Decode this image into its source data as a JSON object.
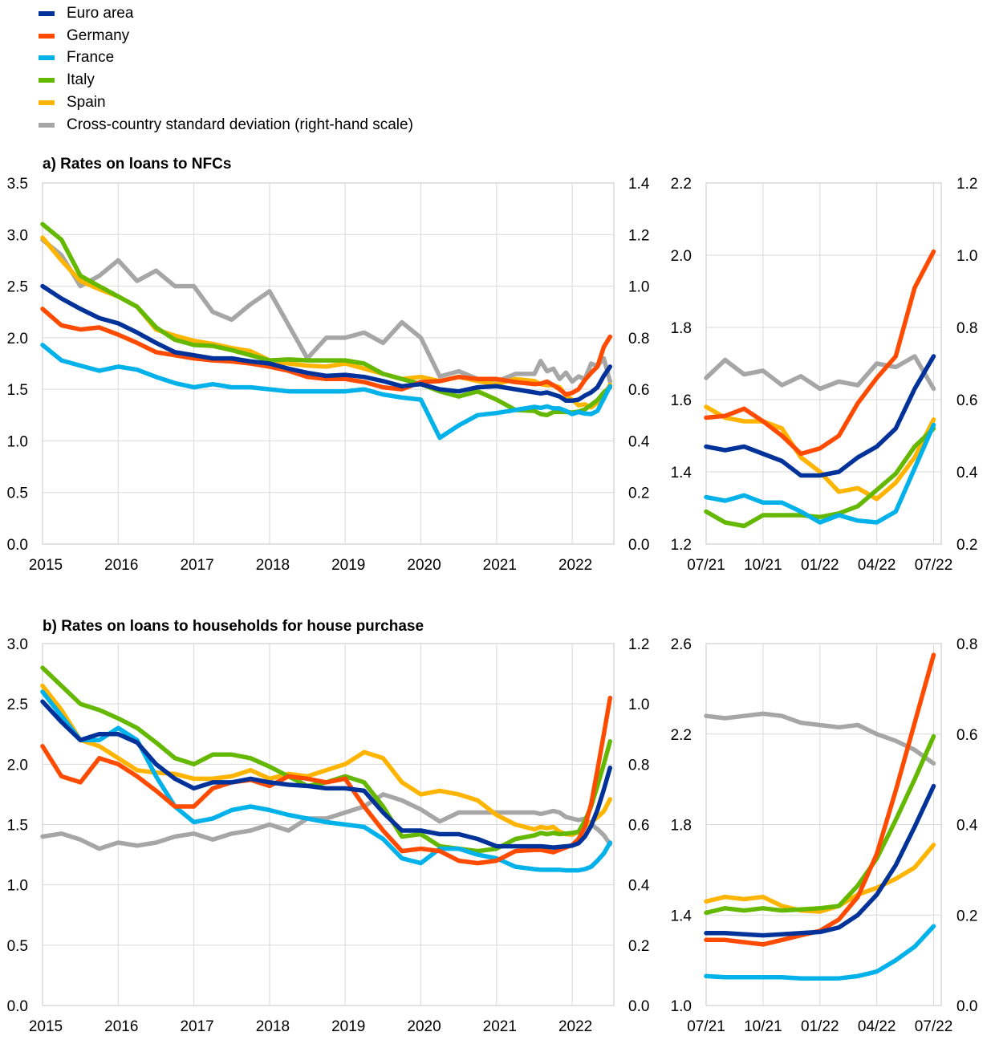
{
  "legend": [
    {
      "name": "Euro area",
      "color": "#003299"
    },
    {
      "name": "Germany",
      "color": "#ff4b00"
    },
    {
      "name": "France",
      "color": "#00b1ea"
    },
    {
      "name": "Italy",
      "color": "#65b800"
    },
    {
      "name": "Spain",
      "color": "#ffb400"
    },
    {
      "name": "Cross-country standard deviation (right-hand scale)",
      "color": "#a6a6a6"
    }
  ],
  "chart_data": [
    {
      "type": "line",
      "title": "a) Rates on loans to NFCs",
      "x": [
        2015,
        2015.25,
        2015.5,
        2015.75,
        2016,
        2016.25,
        2016.5,
        2016.75,
        2017,
        2017.25,
        2017.5,
        2017.75,
        2018,
        2018.25,
        2018.5,
        2018.75,
        2019,
        2019.25,
        2019.5,
        2019.75,
        2020,
        2020.25,
        2020.5,
        2020.75,
        2021,
        2021.25,
        2021.5,
        2021.583,
        2021.667,
        2021.75,
        2021.833,
        2021.917,
        2022,
        2022.083,
        2022.167,
        2022.25,
        2022.333,
        2022.417,
        2022.5
      ],
      "xlim": [
        2015,
        2022.55
      ],
      "xticks": [
        2015,
        2016,
        2017,
        2018,
        2019,
        2020,
        2021,
        2022
      ],
      "xtick_labels": [
        "2015",
        "2016",
        "2017",
        "2018",
        "2019",
        "2020",
        "2021",
        "2022"
      ],
      "ylim": [
        0,
        3.5
      ],
      "yticks": [
        "0.0",
        "0.5",
        "1.0",
        "1.5",
        "2.0",
        "2.5",
        "3.0",
        "3.5"
      ],
      "ylim_right": [
        0,
        1.4
      ],
      "yticks_right": [
        "0.0",
        "0.2",
        "0.4",
        "0.6",
        "0.8",
        "1.0",
        "1.2",
        "1.4"
      ],
      "series": [
        {
          "name": "Euro area",
          "color": "#003299",
          "axis": "left",
          "values": [
            2.5,
            2.38,
            2.28,
            2.19,
            2.14,
            2.05,
            1.95,
            1.86,
            1.83,
            1.8,
            1.8,
            1.77,
            1.75,
            1.7,
            1.66,
            1.63,
            1.64,
            1.62,
            1.58,
            1.53,
            1.55,
            1.5,
            1.48,
            1.52,
            1.53,
            1.5,
            1.47,
            1.46,
            1.47,
            1.45,
            1.43,
            1.39,
            1.39,
            1.4,
            1.44,
            1.47,
            1.52,
            1.63,
            1.72
          ]
        },
        {
          "name": "Germany",
          "color": "#ff4b00",
          "axis": "left",
          "values": [
            2.28,
            2.12,
            2.08,
            2.1,
            2.03,
            1.95,
            1.86,
            1.83,
            1.8,
            1.78,
            1.77,
            1.75,
            1.72,
            1.68,
            1.62,
            1.6,
            1.6,
            1.57,
            1.52,
            1.5,
            1.57,
            1.58,
            1.62,
            1.6,
            1.6,
            1.57,
            1.55,
            1.555,
            1.575,
            1.54,
            1.5,
            1.45,
            1.465,
            1.5,
            1.59,
            1.66,
            1.72,
            1.91,
            2.01
          ]
        },
        {
          "name": "France",
          "color": "#00b1ea",
          "axis": "left",
          "values": [
            1.93,
            1.78,
            1.73,
            1.68,
            1.72,
            1.69,
            1.62,
            1.56,
            1.52,
            1.55,
            1.52,
            1.52,
            1.5,
            1.48,
            1.48,
            1.48,
            1.48,
            1.5,
            1.45,
            1.42,
            1.4,
            1.03,
            1.15,
            1.25,
            1.27,
            1.3,
            1.33,
            1.32,
            1.335,
            1.315,
            1.315,
            1.29,
            1.26,
            1.28,
            1.265,
            1.26,
            1.29,
            1.41,
            1.53
          ]
        },
        {
          "name": "Italy",
          "color": "#65b800",
          "axis": "left",
          "values": [
            3.1,
            2.95,
            2.6,
            2.5,
            2.4,
            2.3,
            2.1,
            1.98,
            1.93,
            1.92,
            1.88,
            1.83,
            1.78,
            1.79,
            1.78,
            1.78,
            1.78,
            1.75,
            1.65,
            1.6,
            1.55,
            1.48,
            1.43,
            1.48,
            1.4,
            1.3,
            1.29,
            1.26,
            1.25,
            1.28,
            1.28,
            1.28,
            1.275,
            1.285,
            1.305,
            1.35,
            1.395,
            1.47,
            1.52
          ]
        },
        {
          "name": "Spain",
          "color": "#ffb400",
          "axis": "left",
          "values": [
            2.97,
            2.75,
            2.55,
            2.47,
            2.4,
            2.3,
            2.08,
            2.02,
            1.97,
            1.94,
            1.9,
            1.87,
            1.78,
            1.75,
            1.73,
            1.72,
            1.75,
            1.7,
            1.65,
            1.6,
            1.62,
            1.58,
            1.62,
            1.58,
            1.55,
            1.6,
            1.58,
            1.55,
            1.54,
            1.54,
            1.52,
            1.44,
            1.4,
            1.345,
            1.355,
            1.325,
            1.37,
            1.44,
            1.545
          ]
        },
        {
          "name": "Cross-country standard deviation (right-hand scale)",
          "color": "#a6a6a6",
          "axis": "right",
          "values": [
            1.18,
            1.12,
            1.0,
            1.04,
            1.1,
            1.02,
            1.06,
            1.0,
            1.0,
            0.9,
            0.87,
            0.93,
            0.98,
            0.85,
            0.72,
            0.8,
            0.8,
            0.82,
            0.78,
            0.86,
            0.8,
            0.65,
            0.67,
            0.64,
            0.63,
            0.66,
            0.66,
            0.71,
            0.67,
            0.68,
            0.64,
            0.665,
            0.63,
            0.65,
            0.64,
            0.7,
            0.69,
            0.72,
            0.63
          ]
        }
      ]
    },
    {
      "type": "line",
      "x": [
        0,
        1,
        2,
        3,
        4,
        5,
        6,
        7,
        8,
        9,
        10,
        11,
        12
      ],
      "xlim": [
        0,
        12.4
      ],
      "xticks": [
        0,
        3,
        6,
        9,
        12
      ],
      "xtick_labels": [
        "07/21",
        "10/21",
        "01/22",
        "04/22",
        "07/22"
      ],
      "ylim": [
        1.2,
        2.2
      ],
      "yticks": [
        "1.2",
        "1.4",
        "1.6",
        "1.8",
        "2.0",
        "2.2"
      ],
      "ylim_right": [
        0.2,
        1.2
      ],
      "yticks_right": [
        "0.2",
        "0.4",
        "0.6",
        "0.8",
        "1.0",
        "1.2"
      ],
      "series": [
        {
          "name": "Euro area",
          "color": "#003299",
          "axis": "left",
          "values": [
            1.47,
            1.46,
            1.47,
            1.45,
            1.43,
            1.39,
            1.39,
            1.4,
            1.44,
            1.47,
            1.52,
            1.63,
            1.72
          ]
        },
        {
          "name": "Germany",
          "color": "#ff4b00",
          "axis": "left",
          "values": [
            1.55,
            1.555,
            1.575,
            1.54,
            1.5,
            1.45,
            1.465,
            1.5,
            1.59,
            1.66,
            1.72,
            1.91,
            2.01
          ]
        },
        {
          "name": "France",
          "color": "#00b1ea",
          "axis": "left",
          "values": [
            1.33,
            1.32,
            1.335,
            1.315,
            1.315,
            1.29,
            1.26,
            1.28,
            1.265,
            1.26,
            1.29,
            1.41,
            1.53
          ]
        },
        {
          "name": "Italy",
          "color": "#65b800",
          "axis": "left",
          "values": [
            1.29,
            1.26,
            1.25,
            1.28,
            1.28,
            1.28,
            1.275,
            1.285,
            1.305,
            1.35,
            1.395,
            1.47,
            1.52
          ]
        },
        {
          "name": "Spain",
          "color": "#ffb400",
          "axis": "left",
          "values": [
            1.58,
            1.55,
            1.54,
            1.54,
            1.52,
            1.44,
            1.4,
            1.345,
            1.355,
            1.325,
            1.37,
            1.44,
            1.545
          ]
        },
        {
          "name": "Cross-country standard deviation (right-hand scale)",
          "color": "#a6a6a6",
          "axis": "right",
          "values": [
            0.66,
            0.71,
            0.67,
            0.68,
            0.64,
            0.665,
            0.63,
            0.65,
            0.64,
            0.7,
            0.69,
            0.72,
            0.63
          ]
        }
      ]
    },
    {
      "type": "line",
      "title": "b) Rates on loans to households for house purchase",
      "x": [
        2015,
        2015.25,
        2015.5,
        2015.75,
        2016,
        2016.25,
        2016.5,
        2016.75,
        2017,
        2017.25,
        2017.5,
        2017.75,
        2018,
        2018.25,
        2018.5,
        2018.75,
        2019,
        2019.25,
        2019.5,
        2019.75,
        2020,
        2020.25,
        2020.5,
        2020.75,
        2021,
        2021.25,
        2021.5,
        2021.583,
        2021.667,
        2021.75,
        2021.833,
        2021.917,
        2022,
        2022.083,
        2022.167,
        2022.25,
        2022.333,
        2022.417,
        2022.5
      ],
      "xlim": [
        2015,
        2022.55
      ],
      "xticks": [
        2015,
        2016,
        2017,
        2018,
        2019,
        2020,
        2021,
        2022
      ],
      "xtick_labels": [
        "2015",
        "2016",
        "2017",
        "2018",
        "2019",
        "2020",
        "2021",
        "2022"
      ],
      "ylim": [
        0,
        3.0
      ],
      "yticks": [
        "0.0",
        "0.5",
        "1.0",
        "1.5",
        "2.0",
        "2.5",
        "3.0"
      ],
      "ylim_right": [
        0,
        1.2
      ],
      "yticks_right": [
        "0.0",
        "0.2",
        "0.4",
        "0.6",
        "0.8",
        "1.0",
        "1.2"
      ],
      "series": [
        {
          "name": "Euro area",
          "color": "#003299",
          "axis": "left",
          "values": [
            2.52,
            2.35,
            2.2,
            2.25,
            2.25,
            2.18,
            2.0,
            1.88,
            1.8,
            1.85,
            1.85,
            1.88,
            1.85,
            1.83,
            1.82,
            1.8,
            1.8,
            1.78,
            1.6,
            1.45,
            1.45,
            1.42,
            1.42,
            1.38,
            1.32,
            1.32,
            1.32,
            1.32,
            1.315,
            1.31,
            1.315,
            1.32,
            1.325,
            1.345,
            1.4,
            1.49,
            1.62,
            1.79,
            1.97
          ]
        },
        {
          "name": "Germany",
          "color": "#ff4b00",
          "axis": "left",
          "values": [
            2.15,
            1.9,
            1.85,
            2.05,
            2.0,
            1.9,
            1.78,
            1.65,
            1.65,
            1.8,
            1.85,
            1.87,
            1.82,
            1.9,
            1.88,
            1.85,
            1.88,
            1.65,
            1.45,
            1.28,
            1.3,
            1.28,
            1.2,
            1.18,
            1.2,
            1.28,
            1.29,
            1.29,
            1.28,
            1.27,
            1.29,
            1.31,
            1.33,
            1.38,
            1.48,
            1.67,
            1.95,
            2.25,
            2.55
          ]
        },
        {
          "name": "France",
          "color": "#00b1ea",
          "axis": "left",
          "values": [
            2.6,
            2.4,
            2.2,
            2.2,
            2.3,
            2.2,
            1.9,
            1.65,
            1.52,
            1.55,
            1.62,
            1.65,
            1.62,
            1.58,
            1.55,
            1.52,
            1.5,
            1.48,
            1.38,
            1.22,
            1.18,
            1.3,
            1.3,
            1.25,
            1.22,
            1.15,
            1.13,
            1.125,
            1.125,
            1.125,
            1.125,
            1.12,
            1.12,
            1.12,
            1.13,
            1.15,
            1.2,
            1.26,
            1.35
          ]
        },
        {
          "name": "Italy",
          "color": "#65b800",
          "axis": "left",
          "values": [
            2.8,
            2.65,
            2.5,
            2.45,
            2.38,
            2.3,
            2.18,
            2.05,
            2.0,
            2.08,
            2.08,
            2.05,
            1.98,
            1.9,
            1.82,
            1.85,
            1.9,
            1.85,
            1.65,
            1.4,
            1.42,
            1.32,
            1.3,
            1.28,
            1.3,
            1.38,
            1.41,
            1.43,
            1.42,
            1.43,
            1.42,
            1.425,
            1.43,
            1.44,
            1.53,
            1.65,
            1.82,
            2.0,
            2.19
          ]
        },
        {
          "name": "Spain",
          "color": "#ffb400",
          "axis": "left",
          "values": [
            2.65,
            2.45,
            2.2,
            2.15,
            2.05,
            1.95,
            1.93,
            1.92,
            1.88,
            1.88,
            1.9,
            1.95,
            1.88,
            1.92,
            1.9,
            1.95,
            2.0,
            2.1,
            2.05,
            1.85,
            1.75,
            1.78,
            1.75,
            1.7,
            1.58,
            1.5,
            1.46,
            1.48,
            1.47,
            1.48,
            1.44,
            1.42,
            1.415,
            1.44,
            1.49,
            1.52,
            1.56,
            1.61,
            1.71
          ]
        },
        {
          "name": "Cross-country standard deviation (right-hand scale)",
          "color": "#a6a6a6",
          "axis": "right",
          "values": [
            0.56,
            0.57,
            0.55,
            0.52,
            0.54,
            0.53,
            0.54,
            0.56,
            0.57,
            0.55,
            0.57,
            0.58,
            0.6,
            0.58,
            0.62,
            0.62,
            0.64,
            0.66,
            0.7,
            0.68,
            0.65,
            0.61,
            0.64,
            0.64,
            0.64,
            0.64,
            0.64,
            0.635,
            0.64,
            0.645,
            0.64,
            0.625,
            0.62,
            0.615,
            0.62,
            0.6,
            0.585,
            0.565,
            0.535
          ]
        }
      ]
    },
    {
      "type": "line",
      "x": [
        0,
        1,
        2,
        3,
        4,
        5,
        6,
        7,
        8,
        9,
        10,
        11,
        12
      ],
      "xlim": [
        0,
        12.4
      ],
      "xticks": [
        0,
        3,
        6,
        9,
        12
      ],
      "xtick_labels": [
        "07/21",
        "10/21",
        "01/22",
        "04/22",
        "07/22"
      ],
      "ylim": [
        1.0,
        2.6
      ],
      "yticks": [
        "1.0",
        "1.4",
        "1.8",
        "2.2",
        "2.6"
      ],
      "ylim_right": [
        0,
        0.8
      ],
      "yticks_right": [
        "0.0",
        "0.2",
        "0.4",
        "0.6",
        "0.8"
      ],
      "series": [
        {
          "name": "Euro area",
          "color": "#003299",
          "axis": "left",
          "values": [
            1.32,
            1.32,
            1.315,
            1.31,
            1.315,
            1.32,
            1.325,
            1.345,
            1.4,
            1.49,
            1.62,
            1.79,
            1.97
          ]
        },
        {
          "name": "Germany",
          "color": "#ff4b00",
          "axis": "left",
          "values": [
            1.29,
            1.29,
            1.28,
            1.27,
            1.29,
            1.31,
            1.33,
            1.38,
            1.48,
            1.67,
            1.95,
            2.25,
            2.55
          ]
        },
        {
          "name": "France",
          "color": "#00b1ea",
          "axis": "left",
          "values": [
            1.13,
            1.125,
            1.125,
            1.125,
            1.125,
            1.12,
            1.12,
            1.12,
            1.13,
            1.15,
            1.2,
            1.26,
            1.35
          ]
        },
        {
          "name": "Italy",
          "color": "#65b800",
          "axis": "left",
          "values": [
            1.41,
            1.43,
            1.42,
            1.43,
            1.42,
            1.425,
            1.43,
            1.44,
            1.53,
            1.65,
            1.82,
            2.0,
            2.19
          ]
        },
        {
          "name": "Spain",
          "color": "#ffb400",
          "axis": "left",
          "values": [
            1.46,
            1.48,
            1.47,
            1.48,
            1.44,
            1.42,
            1.415,
            1.44,
            1.49,
            1.52,
            1.56,
            1.61,
            1.71
          ]
        },
        {
          "name": "Cross-country standard deviation (right-hand scale)",
          "color": "#a6a6a6",
          "axis": "right",
          "values": [
            0.64,
            0.635,
            0.64,
            0.645,
            0.64,
            0.625,
            0.62,
            0.615,
            0.62,
            0.6,
            0.585,
            0.565,
            0.535
          ]
        }
      ]
    }
  ]
}
